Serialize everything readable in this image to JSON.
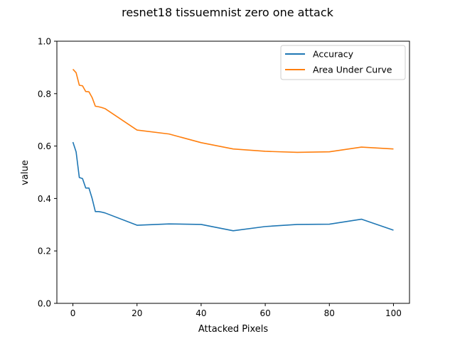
{
  "chart_data": {
    "type": "line",
    "title": "resnet18 tissuemnist zero one attack",
    "xlabel": "Attacked Pixels",
    "ylabel": "value",
    "xlim": [
      -5,
      105
    ],
    "ylim": [
      0.0,
      1.0
    ],
    "x_ticks": [
      0,
      20,
      40,
      60,
      80,
      100
    ],
    "x_tick_labels": [
      "0",
      "20",
      "40",
      "60",
      "80",
      "100"
    ],
    "y_ticks": [
      0.0,
      0.2,
      0.4,
      0.6,
      0.8,
      1.0
    ],
    "y_tick_labels": [
      "0.0",
      "0.2",
      "0.4",
      "0.6",
      "0.8",
      "1.0"
    ],
    "grid": false,
    "legend_position": "top-right",
    "x": [
      0,
      1,
      2,
      3,
      4,
      5,
      6,
      7,
      8,
      9,
      10,
      20,
      30,
      40,
      50,
      60,
      70,
      80,
      90,
      100
    ],
    "series": [
      {
        "name": "Accuracy",
        "color": "#1f77b4",
        "values": [
          0.615,
          0.578,
          0.48,
          0.476,
          0.44,
          0.44,
          0.4,
          0.35,
          0.35,
          0.348,
          0.345,
          0.298,
          0.303,
          0.301,
          0.277,
          0.293,
          0.301,
          0.302,
          0.321,
          0.279
        ]
      },
      {
        "name": "Area Under Curve",
        "color": "#ff7f0e",
        "values": [
          0.893,
          0.88,
          0.832,
          0.83,
          0.808,
          0.807,
          0.785,
          0.752,
          0.75,
          0.747,
          0.743,
          0.661,
          0.646,
          0.613,
          0.589,
          0.58,
          0.576,
          0.578,
          0.596,
          0.589
        ]
      }
    ]
  }
}
